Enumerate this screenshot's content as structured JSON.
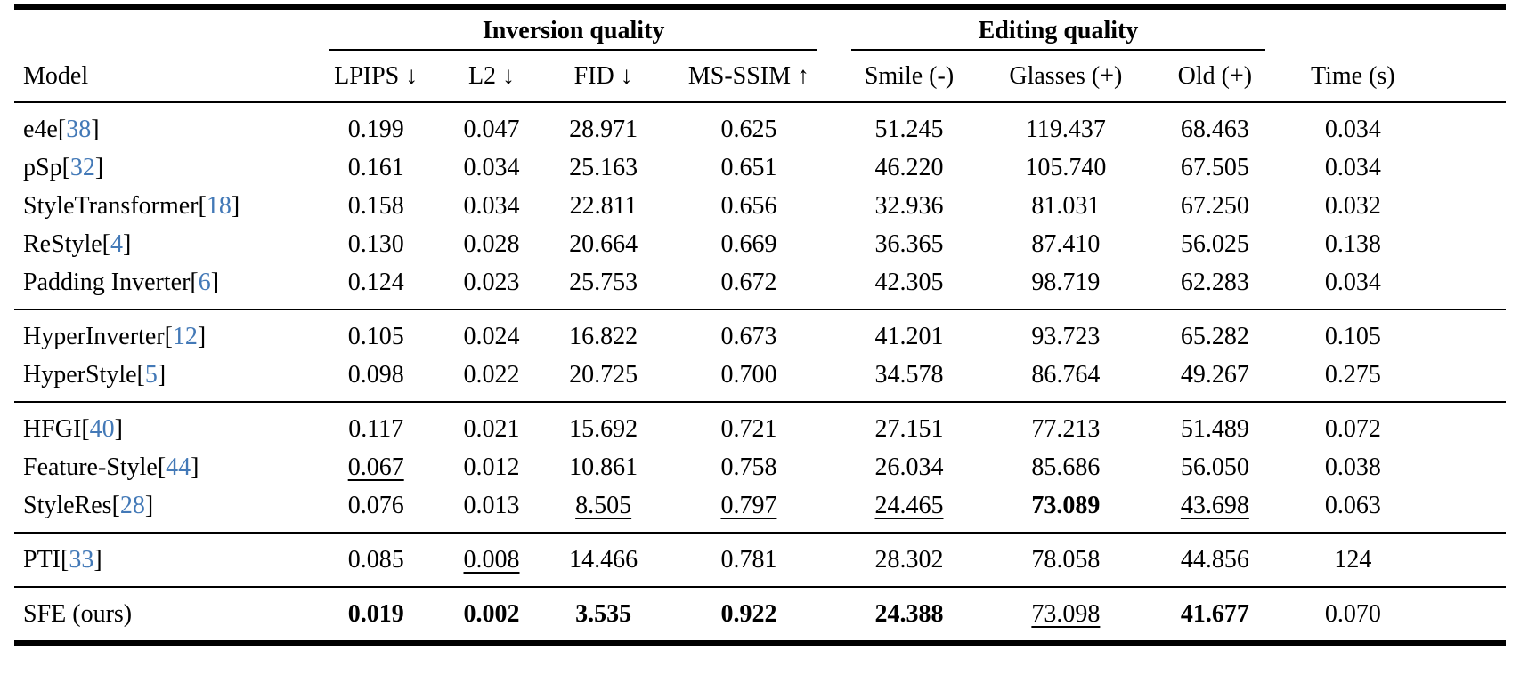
{
  "colors": {
    "citation": "#4379b7"
  },
  "table": {
    "citation_brackets": [
      "[",
      "]"
    ],
    "group_headers": [
      {
        "label": "Inversion quality",
        "span": 4
      },
      {
        "label": "Editing quality",
        "span": 3
      }
    ],
    "columns": [
      {
        "key": "model",
        "label": "Model"
      },
      {
        "key": "lpips",
        "label": "LPIPS ↓"
      },
      {
        "key": "l2",
        "label": "L2 ↓"
      },
      {
        "key": "fid",
        "label": "FID ↓"
      },
      {
        "key": "ms-ssim",
        "label": "MS-SSIM ↑"
      },
      {
        "key": "smile",
        "label": "Smile (-)"
      },
      {
        "key": "glasses",
        "label": "Glasses (+)"
      },
      {
        "key": "old",
        "label": "Old (+)"
      },
      {
        "key": "time",
        "label": "Time (s)"
      }
    ],
    "groups": [
      {
        "rows": [
          {
            "model": "e4e",
            "cite": "38",
            "values": [
              "0.199",
              "0.047",
              "28.971",
              "0.625",
              "51.245",
              "119.437",
              "68.463",
              "0.034"
            ]
          },
          {
            "model": "pSp",
            "cite": "32",
            "values": [
              "0.161",
              "0.034",
              "25.163",
              "0.651",
              "46.220",
              "105.740",
              "67.505",
              "0.034"
            ]
          },
          {
            "model": "StyleTransformer",
            "cite": "18",
            "values": [
              "0.158",
              "0.034",
              "22.811",
              "0.656",
              "32.936",
              "81.031",
              "67.250",
              "0.032"
            ]
          },
          {
            "model": "ReStyle",
            "cite": "4",
            "values": [
              "0.130",
              "0.028",
              "20.664",
              "0.669",
              "36.365",
              "87.410",
              "56.025",
              "0.138"
            ]
          },
          {
            "model": "Padding Inverter",
            "cite": "6",
            "values": [
              "0.124",
              "0.023",
              "25.753",
              "0.672",
              "42.305",
              "98.719",
              "62.283",
              "0.034"
            ]
          }
        ]
      },
      {
        "rows": [
          {
            "model": "HyperInverter",
            "cite": "12",
            "values": [
              "0.105",
              "0.024",
              "16.822",
              "0.673",
              "41.201",
              "93.723",
              "65.282",
              "0.105"
            ]
          },
          {
            "model": "HyperStyle",
            "cite": "5",
            "values": [
              "0.098",
              "0.022",
              "20.725",
              "0.700",
              "34.578",
              "86.764",
              "49.267",
              "0.275"
            ]
          }
        ]
      },
      {
        "rows": [
          {
            "model": "HFGI",
            "cite": "40",
            "values": [
              "0.117",
              "0.021",
              "15.692",
              "0.721",
              "27.151",
              "77.213",
              "51.489",
              "0.072"
            ]
          },
          {
            "model": "Feature-Style",
            "cite": "44",
            "values": [
              "0.067",
              "0.012",
              "10.861",
              "0.758",
              "26.034",
              "85.686",
              "56.050",
              "0.038"
            ],
            "m": [
              "u",
              "",
              "",
              "",
              "",
              "",
              "",
              ""
            ]
          },
          {
            "model": "StyleRes",
            "cite": "28",
            "values": [
              "0.076",
              "0.013",
              "8.505",
              "0.797",
              "24.465",
              "73.089",
              "43.698",
              "0.063"
            ],
            "m": [
              "",
              "",
              "u",
              "u",
              "u",
              "b",
              "u",
              ""
            ]
          }
        ]
      },
      {
        "rows": [
          {
            "model": "PTI",
            "cite": "33",
            "values": [
              "0.085",
              "0.008",
              "14.466",
              "0.781",
              "28.302",
              "78.058",
              "44.856",
              "124"
            ],
            "m": [
              "",
              "u",
              "",
              "",
              "",
              "",
              "",
              ""
            ]
          }
        ]
      },
      {
        "rows": [
          {
            "model": "SFE (ours)",
            "cite": null,
            "values": [
              "0.019",
              "0.002",
              "3.535",
              "0.922",
              "24.388",
              "73.098",
              "41.677",
              "0.070"
            ],
            "m": [
              "b",
              "b",
              "b",
              "b",
              "b",
              "u",
              "b",
              ""
            ]
          }
        ]
      }
    ]
  }
}
